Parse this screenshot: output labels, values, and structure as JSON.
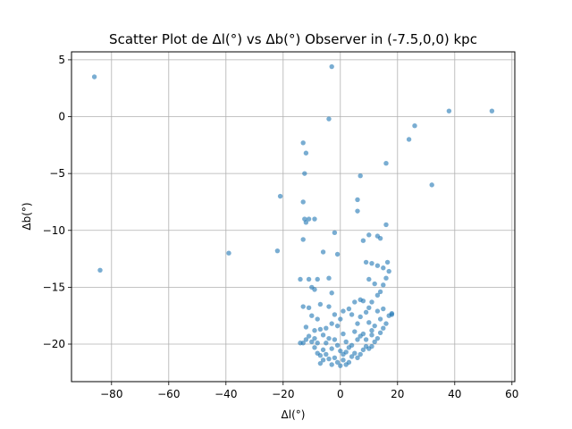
{
  "chart_data": {
    "type": "scatter",
    "title": "Scatter Plot de Δl(°) vs Δb(°) Observer in (-7.5,0,0) kpc",
    "xlabel": "Δl(°)",
    "ylabel": "Δb(°)",
    "xlim": [
      -94,
      61
    ],
    "ylim": [
      -23.3,
      5.7
    ],
    "xticks": [
      -80,
      -60,
      -40,
      -20,
      0,
      20,
      40,
      60
    ],
    "yticks": [
      5,
      0,
      -5,
      -10,
      -15,
      -20
    ],
    "grid": true,
    "marker_color": "#1f77b4",
    "points": [
      [
        -86,
        3.5
      ],
      [
        -84,
        -13.5
      ],
      [
        -39,
        -12
      ],
      [
        -21,
        -7
      ],
      [
        -22,
        -11.8
      ],
      [
        -13,
        -2.3
      ],
      [
        -12,
        -3.2
      ],
      [
        -12.5,
        -5
      ],
      [
        -13,
        -7.5
      ],
      [
        -12.5,
        -9
      ],
      [
        -12,
        -9.3
      ],
      [
        -11,
        -9
      ],
      [
        -9,
        -9
      ],
      [
        -13,
        -10.8
      ],
      [
        -3,
        4.4
      ],
      [
        -4,
        -0.2
      ],
      [
        -2,
        -10.2
      ],
      [
        -1,
        -12.1
      ],
      [
        -6,
        -11.9
      ],
      [
        -14,
        -14.3
      ],
      [
        -11,
        -14.3
      ],
      [
        -8,
        -14.3
      ],
      [
        -10,
        -15
      ],
      [
        -9,
        -15.2
      ],
      [
        -13,
        -16.7
      ],
      [
        -11,
        -16.8
      ],
      [
        -7,
        -16.5
      ],
      [
        -10,
        -17.5
      ],
      [
        -8,
        -17.8
      ],
      [
        -4,
        -14.2
      ],
      [
        -3,
        -15.5
      ],
      [
        -2,
        -17.4
      ],
      [
        -4,
        -16.7
      ],
      [
        -12,
        -18.5
      ],
      [
        -9,
        -18.8
      ],
      [
        -7,
        -18.7
      ],
      [
        -6,
        -19.2
      ],
      [
        -11,
        -19.3
      ],
      [
        -10,
        -19.8
      ],
      [
        -13,
        -19.9
      ],
      [
        -5,
        -19.9
      ],
      [
        -4,
        -19.5
      ],
      [
        -2,
        -19.6
      ],
      [
        -9,
        -20.3
      ],
      [
        -8,
        -20.8
      ],
      [
        -7,
        -21
      ],
      [
        -6,
        -20.5
      ],
      [
        -5,
        -20.9
      ],
      [
        -4,
        -21.3
      ],
      [
        -3,
        -21.8
      ],
      [
        -2,
        -21.2
      ],
      [
        -1,
        -21.6
      ],
      [
        0,
        -21.9
      ],
      [
        1,
        -21.4
      ],
      [
        2,
        -21.8
      ],
      [
        3,
        -21.6
      ],
      [
        4,
        -21.1
      ],
      [
        5,
        -20.8
      ],
      [
        6,
        -21.2
      ],
      [
        7,
        -20.9
      ],
      [
        8,
        -20.5
      ],
      [
        9,
        -20.2
      ],
      [
        10,
        -20.4
      ],
      [
        11,
        -20.2
      ],
      [
        12,
        -19.8
      ],
      [
        13,
        -19.5
      ],
      [
        14,
        -19
      ],
      [
        15,
        -18.6
      ],
      [
        16,
        -18.2
      ],
      [
        17,
        -17.5
      ],
      [
        18,
        -17.3
      ],
      [
        14,
        -17.8
      ],
      [
        12,
        -18.4
      ],
      [
        10,
        -18.1
      ],
      [
        9,
        -17.2
      ],
      [
        10,
        -16.8
      ],
      [
        11,
        -16.3
      ],
      [
        13,
        -15.7
      ],
      [
        14,
        -15.4
      ],
      [
        15,
        -14.8
      ],
      [
        16,
        -14.2
      ],
      [
        17,
        -13.6
      ],
      [
        15,
        -13.3
      ],
      [
        13,
        -13.1
      ],
      [
        11,
        -12.9
      ],
      [
        9,
        -12.8
      ],
      [
        10,
        -14.3
      ],
      [
        12,
        -14.7
      ],
      [
        8,
        -16.2
      ],
      [
        7,
        -17.6
      ],
      [
        6,
        -18.2
      ],
      [
        5,
        -18.9
      ],
      [
        6,
        -19.6
      ],
      [
        7,
        -19.3
      ],
      [
        8,
        -19.1
      ],
      [
        4,
        -17.4
      ],
      [
        3,
        -16.9
      ],
      [
        1,
        -17.1
      ],
      [
        0,
        -17.8
      ],
      [
        -1,
        -18.4
      ],
      [
        1,
        -19.1
      ],
      [
        2,
        -19.8
      ],
      [
        3,
        -20.3
      ],
      [
        0,
        -20.6
      ],
      [
        -1,
        -20.1
      ],
      [
        2,
        -20.7
      ],
      [
        8,
        -10.9
      ],
      [
        10,
        -10.4
      ],
      [
        13,
        -10.5
      ],
      [
        14,
        -10.7
      ],
      [
        16,
        -9.5
      ],
      [
        16,
        -4.1
      ],
      [
        7,
        -5.2
      ],
      [
        6,
        -7.3
      ],
      [
        6,
        -8.3
      ],
      [
        16.5,
        -12.8
      ],
      [
        24,
        -2
      ],
      [
        26,
        -0.8
      ],
      [
        32,
        -6
      ],
      [
        38,
        0.5
      ],
      [
        53,
        0.5
      ],
      [
        -3,
        -18.2
      ],
      [
        -5,
        -18.6
      ],
      [
        -8,
        -19.9
      ],
      [
        -12,
        -19.6
      ],
      [
        5,
        -16.3
      ],
      [
        7,
        -16.1
      ],
      [
        11,
        -18.8
      ],
      [
        13,
        -17.1
      ],
      [
        15,
        -16.9
      ],
      [
        18,
        -17.4
      ],
      [
        9,
        -19.6
      ],
      [
        -6,
        -21.4
      ],
      [
        -7,
        -21.7
      ],
      [
        4,
        -20.1
      ],
      [
        1,
        -20.9
      ],
      [
        -3,
        -20.4
      ],
      [
        11,
        -19.2
      ],
      [
        -9,
        -19.5
      ],
      [
        -14,
        -19.9
      ]
    ]
  }
}
